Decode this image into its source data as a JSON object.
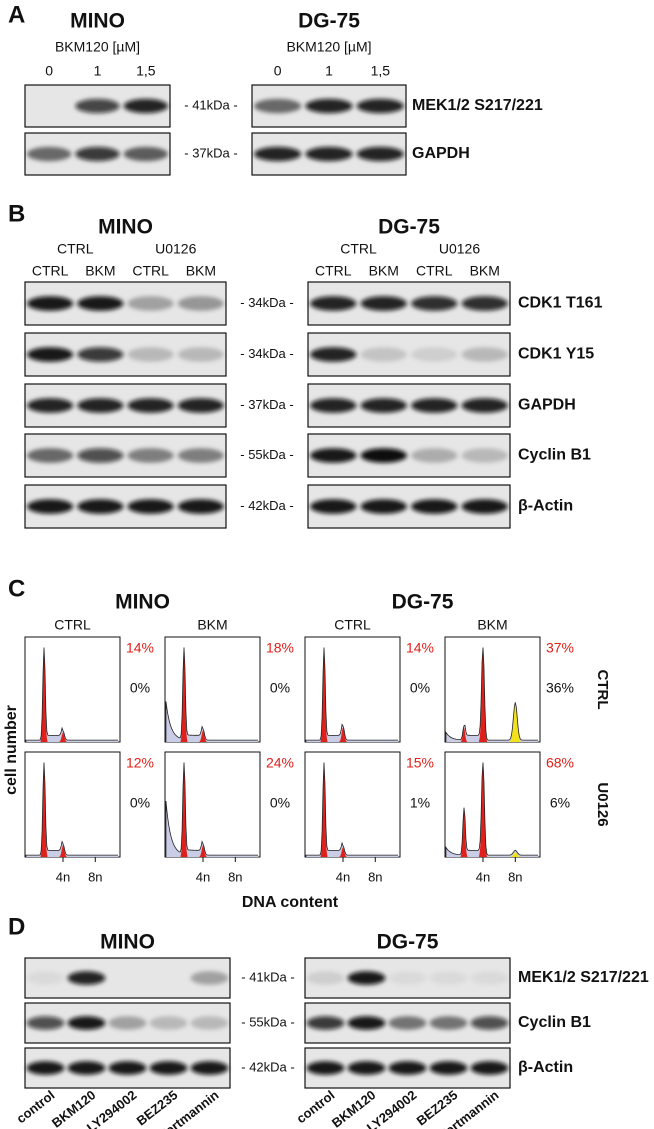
{
  "panel_a": {
    "label": "A",
    "groups": [
      "MINO",
      "DG-75"
    ],
    "treatment": "BKM120 [µM]",
    "lanes": [
      "0",
      "1",
      "1,5"
    ],
    "markers": [
      "- 41kDa -",
      "- 37kDa -"
    ],
    "proteins": [
      "MEK1/2 S217/221",
      "GAPDH"
    ]
  },
  "panel_b": {
    "label": "B",
    "groups": [
      "MINO",
      "DG-75"
    ],
    "conditions": [
      "CTRL",
      "U0126"
    ],
    "lanes": [
      "CTRL",
      "BKM",
      "CTRL",
      "BKM"
    ],
    "markers": [
      "- 34kDa -",
      "- 34kDa -",
      "- 37kDa -",
      "- 55kDa -",
      "- 42kDa -"
    ],
    "proteins": [
      "CDK1 T161",
      "CDK1 Y15",
      "GAPDH",
      "Cyclin B1",
      "β-Actin"
    ]
  },
  "panel_c": {
    "label": "C",
    "y_label": "cell number",
    "x_label": "DNA content",
    "x_ticks": [
      "4n",
      "8n"
    ],
    "row_labels": [
      "CTRL",
      "U0126"
    ],
    "groups": [
      {
        "title": "MINO",
        "columns": [
          {
            "header": "CTRL",
            "stats": [
              [
                "14%",
                "0%"
              ],
              [
                "12%",
                "0%"
              ]
            ]
          },
          {
            "header": "BKM",
            "stats": [
              [
                "18%",
                "0%"
              ],
              [
                "24%",
                "0%"
              ]
            ]
          }
        ]
      },
      {
        "title": "DG-75",
        "columns": [
          {
            "header": "CTRL",
            "stats": [
              [
                "14%",
                "0%"
              ],
              [
                "15%",
                "1%"
              ]
            ]
          },
          {
            "header": "BKM",
            "stats": [
              [
                "37%",
                "36%"
              ],
              [
                "68%",
                "6%"
              ]
            ]
          }
        ]
      }
    ]
  },
  "panel_d": {
    "label": "D",
    "groups": [
      "MINO",
      "DG-75"
    ],
    "lanes": [
      "control",
      "BKM120",
      "LY294002",
      "BEZ235",
      "Wortmannin"
    ],
    "markers": [
      "- 41kDa -",
      "- 55kDa -",
      "- 42kDa -"
    ],
    "proteins": [
      "MEK1/2 S217/221",
      "Cyclin B1",
      "β-Actin"
    ]
  }
}
